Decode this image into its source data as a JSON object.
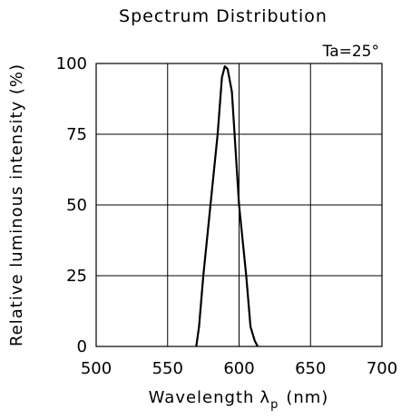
{
  "chart_data": {
    "type": "line",
    "title": "Spectrum Distribution",
    "annotation": "Ta=25°",
    "xlabel": "Wavelength",
    "xlabel_symbol": "λ",
    "xlabel_subscript": "p",
    "xlabel_unit": "(nm)",
    "ylabel": "Relative luminous intensity (%)",
    "xlim": [
      500,
      700
    ],
    "ylim": [
      0,
      100
    ],
    "x_ticks": [
      "500",
      "550",
      "600",
      "650",
      "700"
    ],
    "y_ticks": [
      "0",
      "25",
      "50",
      "75",
      "100"
    ],
    "grid": true,
    "series": [
      {
        "x": [
          570,
          572,
          575,
          580,
          585,
          588,
          590,
          592,
          595,
          600,
          605,
          608,
          611,
          613
        ],
        "y": [
          0,
          7,
          25,
          50,
          75,
          95,
          99,
          98,
          90,
          50,
          25,
          7,
          2,
          0
        ]
      }
    ]
  }
}
